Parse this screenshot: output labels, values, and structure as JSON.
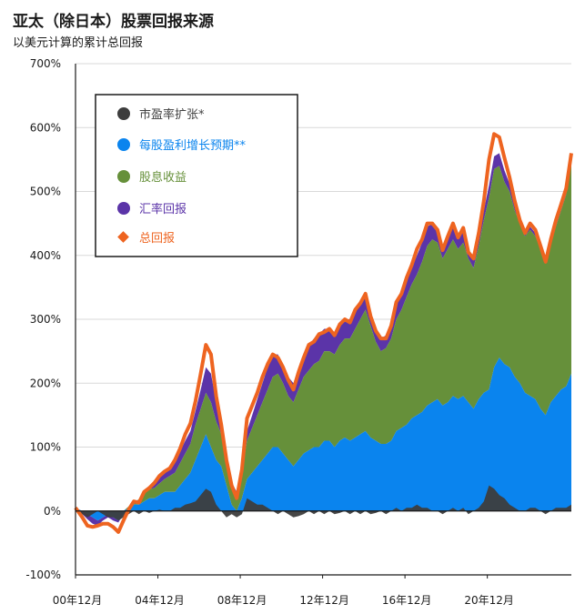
{
  "chart_data": {
    "type": "area",
    "title": "亚太（除日本）股票回报来源",
    "subtitle": "以美元计算的累计总回报",
    "ylim": [
      -100,
      700
    ],
    "yticks": [
      -100,
      0,
      100,
      200,
      300,
      400,
      500,
      600,
      700
    ],
    "ytick_labels": [
      "-100%",
      "0%",
      "100%",
      "200%",
      "300%",
      "400%",
      "500%",
      "600%",
      "700%"
    ],
    "xlim": [
      2000.92,
      2025.0
    ],
    "xtick_positions": [
      2000.92,
      2004.92,
      2008.92,
      2012.92,
      2016.92,
      2020.92
    ],
    "xtick_labels": [
      "00年12月",
      "04年12月",
      "08年12月",
      "12年12月",
      "16年12月",
      "20年12月"
    ],
    "legend_position": "top-left",
    "colors": {
      "pe": "#3d3d3d",
      "eps": "#0a84ee",
      "div": "#66903a",
      "fx": "#5b34a8",
      "total": "#ee6420",
      "axis": "#1a1a1a",
      "grid": "#d9d9d9"
    },
    "x": [
      2000.92,
      2001.25,
      2001.5,
      2001.75,
      2002.0,
      2002.25,
      2002.5,
      2002.75,
      2003.0,
      2003.25,
      2003.5,
      2003.75,
      2004.0,
      2004.25,
      2004.5,
      2004.75,
      2005.0,
      2005.25,
      2005.5,
      2005.75,
      2006.0,
      2006.25,
      2006.5,
      2006.75,
      2007.0,
      2007.25,
      2007.5,
      2007.75,
      2008.0,
      2008.25,
      2008.5,
      2008.75,
      2009.0,
      2009.25,
      2009.5,
      2009.75,
      2010.0,
      2010.25,
      2010.5,
      2010.75,
      2011.0,
      2011.25,
      2011.5,
      2011.75,
      2012.0,
      2012.25,
      2012.5,
      2012.75,
      2013.0,
      2013.25,
      2013.5,
      2013.75,
      2014.0,
      2014.25,
      2014.5,
      2014.75,
      2015.0,
      2015.25,
      2015.5,
      2015.75,
      2016.0,
      2016.25,
      2016.5,
      2016.75,
      2017.0,
      2017.25,
      2017.5,
      2017.75,
      2018.0,
      2018.25,
      2018.5,
      2018.75,
      2019.0,
      2019.25,
      2019.5,
      2019.75,
      2020.0,
      2020.25,
      2020.5,
      2020.75,
      2021.0,
      2021.25,
      2021.5,
      2021.75,
      2022.0,
      2022.25,
      2022.5,
      2022.75,
      2023.0,
      2023.25,
      2023.5,
      2023.75,
      2024.0,
      2024.25,
      2024.5,
      2024.75,
      2025.0
    ],
    "series": [
      {
        "name": "市盈率扩张*",
        "key": "pe",
        "values": [
          0,
          -5,
          -10,
          -5,
          0,
          -5,
          -10,
          -10,
          -15,
          -10,
          -5,
          0,
          -5,
          0,
          -3,
          0,
          2,
          0,
          0,
          5,
          5,
          10,
          12,
          15,
          25,
          35,
          30,
          10,
          0,
          -10,
          -5,
          -10,
          -5,
          20,
          15,
          10,
          10,
          5,
          0,
          -5,
          0,
          -5,
          -10,
          -8,
          -5,
          0,
          -5,
          0,
          -5,
          0,
          -5,
          -3,
          0,
          -5,
          0,
          -5,
          0,
          -5,
          -3,
          0,
          -5,
          0,
          5,
          0,
          5,
          5,
          10,
          5,
          5,
          0,
          0,
          -5,
          0,
          5,
          0,
          5,
          -5,
          0,
          5,
          15,
          40,
          35,
          25,
          20,
          10,
          5,
          0,
          0,
          5,
          5,
          0,
          -5,
          0,
          5,
          5,
          5,
          10
        ]
      },
      {
        "name": "每股盈利增长预期**",
        "key": "eps",
        "values": [
          5,
          0,
          -5,
          -10,
          -15,
          -10,
          -5,
          -10,
          -15,
          -5,
          5,
          10,
          10,
          15,
          20,
          20,
          25,
          30,
          30,
          30,
          40,
          50,
          60,
          80,
          100,
          120,
          100,
          80,
          70,
          40,
          10,
          0,
          20,
          50,
          60,
          70,
          80,
          90,
          100,
          100,
          90,
          80,
          70,
          80,
          90,
          95,
          100,
          100,
          110,
          110,
          100,
          110,
          115,
          110,
          115,
          120,
          125,
          115,
          110,
          105,
          105,
          110,
          125,
          130,
          135,
          145,
          150,
          155,
          165,
          170,
          175,
          165,
          170,
          180,
          175,
          180,
          170,
          160,
          175,
          185,
          190,
          225,
          240,
          230,
          225,
          210,
          200,
          185,
          180,
          175,
          160,
          150,
          170,
          180,
          190,
          195,
          215
        ]
      },
      {
        "name": "股息收益",
        "key": "div",
        "values": [
          0,
          0,
          0,
          0,
          0,
          0,
          0,
          0,
          0,
          0,
          2,
          5,
          8,
          12,
          14,
          16,
          18,
          20,
          25,
          30,
          35,
          40,
          45,
          55,
          60,
          65,
          70,
          60,
          50,
          40,
          30,
          25,
          40,
          60,
          70,
          80,
          90,
          100,
          110,
          115,
          110,
          100,
          100,
          110,
          120,
          125,
          130,
          135,
          140,
          140,
          145,
          150,
          155,
          160,
          170,
          180,
          190,
          175,
          155,
          145,
          150,
          160,
          175,
          185,
          200,
          210,
          220,
          235,
          250,
          255,
          245,
          230,
          240,
          245,
          235,
          240,
          225,
          220,
          240,
          270,
          300,
          310,
          300,
          285,
          275,
          260,
          250,
          245,
          260,
          255,
          250,
          240,
          250,
          265,
          280,
          300,
          330
        ]
      },
      {
        "name": "汇率回报",
        "key": "fx",
        "values": [
          0,
          -5,
          -8,
          -10,
          -8,
          -5,
          -5,
          -5,
          -3,
          0,
          0,
          0,
          0,
          3,
          5,
          8,
          10,
          12,
          12,
          15,
          18,
          20,
          20,
          22,
          30,
          40,
          45,
          30,
          15,
          10,
          5,
          5,
          10,
          15,
          20,
          25,
          30,
          35,
          35,
          30,
          25,
          30,
          30,
          35,
          35,
          40,
          40,
          42,
          35,
          35,
          35,
          35,
          30,
          30,
          30,
          30,
          25,
          20,
          20,
          20,
          20,
          20,
          22,
          25,
          25,
          25,
          30,
          30,
          30,
          25,
          20,
          18,
          20,
          20,
          18,
          18,
          15,
          15,
          15,
          15,
          20,
          20,
          20,
          18,
          12,
          10,
          5,
          5,
          5,
          5,
          5,
          5,
          5,
          5,
          5,
          5,
          5
        ]
      },
      {
        "name": "总回报",
        "key": "total",
        "marker": "diamond",
        "values": [
          5,
          -10,
          -23,
          -25,
          -23,
          -20,
          -20,
          -25,
          -33,
          -15,
          2,
          15,
          13,
          30,
          36,
          44,
          55,
          62,
          67,
          80,
          98,
          120,
          137,
          172,
          215,
          260,
          245,
          180,
          135,
          80,
          40,
          20,
          65,
          145,
          165,
          185,
          210,
          230,
          245,
          240,
          225,
          205,
          190,
          217,
          240,
          260,
          265,
          277,
          280,
          285,
          275,
          292,
          300,
          295,
          315,
          325,
          340,
          305,
          282,
          270,
          270,
          290,
          327,
          340,
          365,
          385,
          410,
          425,
          450,
          450,
          440,
          408,
          430,
          450,
          428,
          443,
          405,
          395,
          435,
          485,
          550,
          590,
          585,
          553,
          522,
          485,
          455,
          435,
          450,
          440,
          415,
          390,
          425,
          455,
          480,
          505,
          560
        ]
      }
    ]
  }
}
